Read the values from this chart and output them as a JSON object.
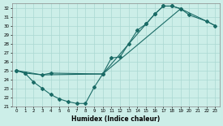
{
  "xlabel": "Humidex (Indice chaleur)",
  "bg_color": "#cceee8",
  "grid_color": "#aad8d2",
  "line_color": "#1a6b66",
  "xlim": [
    -0.5,
    23.5
  ],
  "ylim": [
    21,
    32.5
  ],
  "xticks": [
    0,
    1,
    2,
    3,
    4,
    5,
    6,
    7,
    8,
    9,
    10,
    11,
    12,
    13,
    14,
    15,
    16,
    17,
    18,
    19,
    20,
    21,
    22,
    23
  ],
  "yticks": [
    21,
    22,
    23,
    24,
    25,
    26,
    27,
    28,
    29,
    30,
    31,
    32
  ],
  "curve1_x": [
    0,
    1,
    2,
    3,
    4,
    5,
    6,
    7,
    8,
    9,
    10,
    11,
    12,
    13,
    14,
    15,
    16,
    17,
    18,
    19
  ],
  "curve1_y": [
    25.0,
    24.7,
    23.7,
    23.0,
    22.3,
    21.8,
    21.5,
    21.3,
    21.3,
    23.1,
    24.6,
    26.4,
    26.5,
    28.0,
    29.5,
    30.2,
    31.3,
    32.2,
    32.2,
    31.9
  ],
  "curve2_x": [
    0,
    1,
    3,
    4,
    10,
    15,
    16,
    17,
    18,
    19,
    20,
    22,
    23
  ],
  "curve2_y": [
    25.0,
    24.7,
    24.5,
    24.7,
    24.6,
    30.2,
    31.3,
    32.2,
    32.2,
    31.9,
    31.2,
    30.5,
    30.0
  ],
  "curve3_x": [
    0,
    3,
    10,
    19,
    22,
    23
  ],
  "curve3_y": [
    25.0,
    24.5,
    24.6,
    31.9,
    30.5,
    30.0
  ]
}
